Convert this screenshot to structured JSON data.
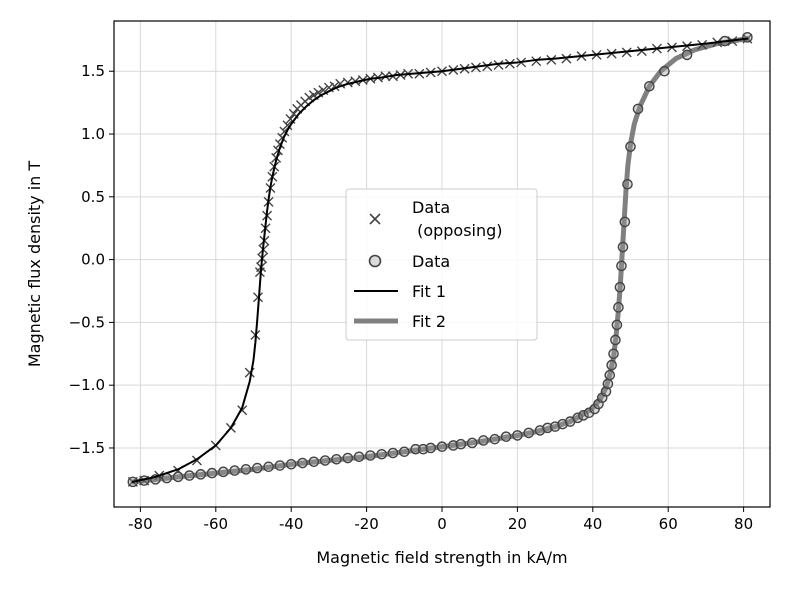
{
  "chart_data": {
    "type": "line",
    "title": "",
    "xlabel": "Magnetic field strength in kA/m",
    "ylabel": "Magnetic flux density in T",
    "xlim": [
      -87,
      87
    ],
    "ylim": [
      -1.97,
      1.9
    ],
    "xticks": [
      -80,
      -60,
      -40,
      -20,
      0,
      20,
      40,
      60,
      80
    ],
    "xtick_labels": [
      "-80",
      "-60",
      "-40",
      "-20",
      "0",
      "20",
      "40",
      "60",
      "80"
    ],
    "yticks": [
      -1.5,
      -1.0,
      -0.5,
      0.0,
      0.5,
      1.0,
      1.5
    ],
    "ytick_labels": [
      "−1.5",
      "−1.0",
      "−0.5",
      "0.0",
      "0.5",
      "1.0",
      "1.5"
    ],
    "grid": true,
    "legend_position": "center",
    "legend": [
      {
        "key": "opposing",
        "label_lines": [
          "Data",
          " (opposing)"
        ],
        "marker": "x",
        "color": "#444444"
      },
      {
        "key": "data",
        "label_lines": [
          "Data"
        ],
        "marker": "o",
        "color": "#444444"
      },
      {
        "key": "fit1",
        "label_lines": [
          "Fit 1"
        ],
        "line_color": "#000000",
        "line_width": 2
      },
      {
        "key": "fit2",
        "label_lines": [
          "Fit 2"
        ],
        "line_color": "#808080",
        "line_width": 5
      }
    ],
    "series": [
      {
        "name": "Data (opposing)",
        "marker": "x",
        "color": "#444444",
        "x": [
          -82,
          -79,
          -75,
          -70,
          -65,
          -60,
          -56,
          -53,
          -51,
          -49.5,
          -48.8,
          -48.3,
          -48.0,
          -47.7,
          -47.4,
          -47.1,
          -46.8,
          -46.4,
          -46.0,
          -45.5,
          -45.0,
          -44.5,
          -44.0,
          -43.5,
          -43.0,
          -42.4,
          -41.8,
          -41.0,
          -40.2,
          -39.3,
          -38.4,
          -37.4,
          -36.3,
          -35.2,
          -34.0,
          -32.8,
          -31.5,
          -30.0,
          -28.5,
          -27.0,
          -25.0,
          -23.0,
          -21.0,
          -19.0,
          -17.0,
          -15.0,
          -13.0,
          -11.0,
          -9.0,
          -6.0,
          -3.0,
          0,
          3,
          6,
          9,
          12,
          15,
          18,
          21,
          25,
          29,
          33,
          37,
          41,
          45,
          49,
          53,
          57,
          61,
          65,
          69,
          73,
          77,
          81
        ],
        "y": [
          -1.77,
          -1.76,
          -1.72,
          -1.68,
          -1.6,
          -1.48,
          -1.34,
          -1.2,
          -0.9,
          -0.6,
          -0.3,
          -0.1,
          -0.06,
          0.01,
          0.08,
          0.15,
          0.25,
          0.35,
          0.46,
          0.57,
          0.66,
          0.74,
          0.81,
          0.87,
          0.92,
          0.97,
          1.02,
          1.07,
          1.12,
          1.16,
          1.2,
          1.23,
          1.26,
          1.29,
          1.31,
          1.33,
          1.35,
          1.37,
          1.38,
          1.4,
          1.41,
          1.42,
          1.43,
          1.44,
          1.45,
          1.46,
          1.46,
          1.47,
          1.48,
          1.48,
          1.49,
          1.5,
          1.51,
          1.52,
          1.53,
          1.54,
          1.55,
          1.56,
          1.57,
          1.58,
          1.59,
          1.6,
          1.62,
          1.63,
          1.64,
          1.65,
          1.66,
          1.68,
          1.69,
          1.7,
          1.71,
          1.73,
          1.74,
          1.76
        ]
      },
      {
        "name": "Data",
        "marker": "o",
        "color": "#444444",
        "x": [
          -82,
          -79,
          -76,
          -73,
          -70,
          -67,
          -64,
          -61,
          -58,
          -55,
          -52,
          -49,
          -46,
          -43,
          -40,
          -37,
          -34,
          -31,
          -28,
          -25,
          -22,
          -19,
          -16,
          -13,
          -10,
          -7,
          -5,
          -3,
          0,
          3,
          5,
          8,
          11,
          14,
          17,
          20,
          23,
          26,
          28,
          30,
          32,
          34,
          36,
          37.5,
          39,
          40.5,
          41.5,
          42.5,
          43.5,
          44,
          44.5,
          45,
          45.5,
          46,
          46.4,
          46.8,
          47.2,
          47.6,
          48.0,
          48.5,
          49.2,
          50.0,
          52.0,
          55.0,
          59.0,
          65.0,
          75.0,
          81.0
        ],
        "y": [
          -1.77,
          -1.76,
          -1.75,
          -1.74,
          -1.73,
          -1.72,
          -1.71,
          -1.7,
          -1.69,
          -1.68,
          -1.67,
          -1.66,
          -1.65,
          -1.64,
          -1.63,
          -1.62,
          -1.61,
          -1.6,
          -1.59,
          -1.58,
          -1.57,
          -1.56,
          -1.55,
          -1.54,
          -1.53,
          -1.51,
          -1.51,
          -1.5,
          -1.49,
          -1.48,
          -1.47,
          -1.46,
          -1.44,
          -1.43,
          -1.41,
          -1.4,
          -1.38,
          -1.36,
          -1.34,
          -1.33,
          -1.31,
          -1.29,
          -1.26,
          -1.24,
          -1.22,
          -1.19,
          -1.15,
          -1.1,
          -1.05,
          -0.99,
          -0.92,
          -0.84,
          -0.75,
          -0.64,
          -0.52,
          -0.38,
          -0.22,
          -0.05,
          0.1,
          0.3,
          0.6,
          0.9,
          1.2,
          1.38,
          1.5,
          1.63,
          1.74,
          1.77
        ]
      },
      {
        "name": "Fit 1",
        "line_color": "#000000",
        "line_width": 2,
        "x": [
          -82,
          -76,
          -70,
          -65,
          -60,
          -56,
          -53,
          -51,
          -50,
          -49.5,
          -49,
          -48.5,
          -48,
          -47.5,
          -47,
          -46.5,
          -46,
          -45.5,
          -45,
          -44,
          -43,
          -42,
          -41,
          -40,
          -38,
          -36,
          -34,
          -32,
          -30,
          -28,
          -25,
          -22,
          -19,
          -16,
          -12,
          -8,
          -4,
          0,
          5,
          10,
          15,
          20,
          25,
          30,
          40,
          50,
          60,
          70,
          81
        ],
        "y": [
          -1.77,
          -1.73,
          -1.67,
          -1.59,
          -1.48,
          -1.34,
          -1.18,
          -0.97,
          -0.8,
          -0.66,
          -0.48,
          -0.28,
          -0.08,
          0.08,
          0.22,
          0.36,
          0.48,
          0.58,
          0.66,
          0.79,
          0.89,
          0.97,
          1.03,
          1.08,
          1.16,
          1.22,
          1.27,
          1.31,
          1.34,
          1.37,
          1.4,
          1.42,
          1.44,
          1.45,
          1.47,
          1.48,
          1.49,
          1.5,
          1.52,
          1.54,
          1.56,
          1.57,
          1.59,
          1.6,
          1.63,
          1.66,
          1.69,
          1.72,
          1.76
        ]
      },
      {
        "name": "Fit 2",
        "line_color": "#808080",
        "line_width": 5,
        "x": [
          -82,
          -70,
          -60,
          -50,
          -40,
          -30,
          -20,
          -10,
          0,
          10,
          20,
          25,
          30,
          34,
          37,
          40,
          42,
          43.5,
          44.5,
          45.5,
          46.2,
          46.8,
          47.3,
          47.7,
          48.0,
          48.4,
          48.8,
          49.3,
          50.0,
          51.0,
          52.5,
          55.0,
          58.0,
          62.0,
          67.0,
          73.0,
          81.0
        ],
        "y": [
          -1.77,
          -1.73,
          -1.7,
          -1.67,
          -1.63,
          -1.6,
          -1.57,
          -1.53,
          -1.49,
          -1.45,
          -1.4,
          -1.37,
          -1.33,
          -1.29,
          -1.24,
          -1.18,
          -1.11,
          -1.02,
          -0.92,
          -0.78,
          -0.6,
          -0.4,
          -0.2,
          0.0,
          0.15,
          0.35,
          0.55,
          0.75,
          0.92,
          1.08,
          1.22,
          1.38,
          1.5,
          1.6,
          1.67,
          1.72,
          1.76
        ]
      }
    ]
  }
}
